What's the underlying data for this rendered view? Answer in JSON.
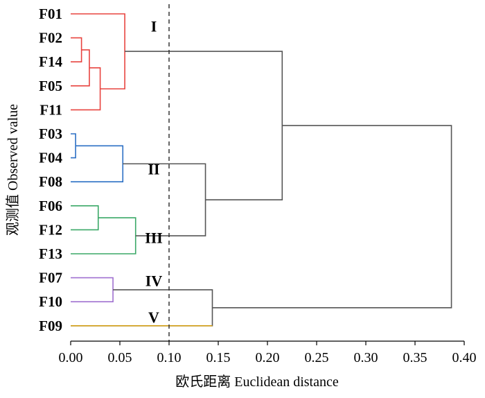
{
  "chart_data": {
    "type": "dendrogram",
    "xlabel": "欧氏距离 Euclidean distance",
    "ylabel": "观测值 Observed value",
    "xlim": [
      0,
      0.4
    ],
    "x_ticks": [
      "0.00",
      "0.05",
      "0.10",
      "0.15",
      "0.20",
      "0.25",
      "0.30",
      "0.35",
      "0.40"
    ],
    "cutoff_line": 0.1,
    "leaves": [
      "F01",
      "F02",
      "F14",
      "F05",
      "F11",
      "F03",
      "F04",
      "F08",
      "F06",
      "F12",
      "F13",
      "F07",
      "F10",
      "F09"
    ],
    "merges": [
      {
        "a": "F02",
        "b": "F14",
        "distance": 0.011,
        "color": "#e8433f"
      },
      {
        "a": "F02+F14",
        "b": "F05",
        "distance": 0.019,
        "color": "#e8433f"
      },
      {
        "a": "F02+F14+F05",
        "b": "F11",
        "distance": 0.03,
        "color": "#e8433f"
      },
      {
        "a": "F01",
        "b": "F02+F14+F05+F11",
        "distance": 0.055,
        "color": "#e8433f"
      },
      {
        "a": "F03",
        "b": "F04",
        "distance": 0.005,
        "color": "#2b6fc4"
      },
      {
        "a": "F03+F04",
        "b": "F08",
        "distance": 0.053,
        "color": "#2b6fc4"
      },
      {
        "a": "F06",
        "b": "F12",
        "distance": 0.028,
        "color": "#3aa867"
      },
      {
        "a": "F06+F12",
        "b": "F13",
        "distance": 0.066,
        "color": "#3aa867"
      },
      {
        "a": "Cluster II",
        "b": "Cluster III",
        "distance": 0.137,
        "color": "#555555"
      },
      {
        "a": "Cluster I",
        "b": "Cluster II+III",
        "distance": 0.215,
        "color": "#555555"
      },
      {
        "a": "F07",
        "b": "F10",
        "distance": 0.043,
        "color": "#a070d0"
      },
      {
        "a": "Cluster IV",
        "b": "Cluster V",
        "distance": 0.144,
        "color": "#555555"
      },
      {
        "a": "Clusters I-III",
        "b": "Clusters IV-V",
        "distance": 0.387,
        "color": "#555555"
      }
    ],
    "clusters": [
      {
        "label": "I",
        "members": [
          "F01",
          "F02",
          "F14",
          "F05",
          "F11"
        ],
        "color": "#e8433f"
      },
      {
        "label": "II",
        "members": [
          "F03",
          "F04",
          "F08"
        ],
        "color": "#2b6fc4"
      },
      {
        "label": "III",
        "members": [
          "F06",
          "F12",
          "F13"
        ],
        "color": "#3aa867"
      },
      {
        "label": "IV",
        "members": [
          "F07",
          "F10"
        ],
        "color": "#a070d0"
      },
      {
        "label": "V",
        "members": [
          "F09"
        ],
        "color": "#d4a017"
      }
    ]
  }
}
